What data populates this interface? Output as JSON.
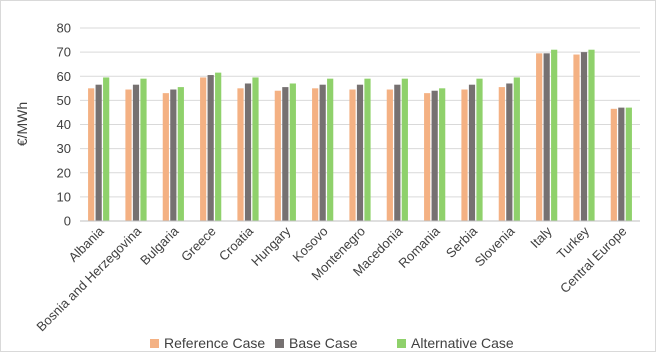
{
  "chart_data": {
    "type": "bar",
    "title": "",
    "xlabel": "",
    "ylabel": "€/MWh",
    "ylim": [
      0,
      80
    ],
    "yticks": [
      0,
      10,
      20,
      30,
      40,
      50,
      60,
      70,
      80
    ],
    "grid": true,
    "legend_position": "bottom",
    "categories": [
      "Albania",
      "Bosnia and Herzegovina",
      "Bulgaria",
      "Greece",
      "Croatia",
      "Hungary",
      "Kosovo",
      "Montenegro",
      "Macedonia",
      "Romania",
      "Serbia",
      "Slovenia",
      "Italy",
      "Turkey",
      "Central Europe"
    ],
    "series": [
      {
        "name": "Reference Case",
        "color": "#F4B183",
        "values": [
          55,
          54.5,
          53,
          59.5,
          55,
          54,
          55,
          54.5,
          54.5,
          53,
          54.5,
          55.5,
          69.5,
          69,
          46.5
        ]
      },
      {
        "name": "Base Case",
        "color": "#767171",
        "values": [
          56.5,
          56.5,
          54.5,
          60.5,
          57,
          55.5,
          56.5,
          56.5,
          56.5,
          54,
          56.5,
          57,
          69.5,
          70,
          47
        ]
      },
      {
        "name": "Alternative Case",
        "color": "#8FD16B",
        "values": [
          59.5,
          59,
          55.5,
          61.5,
          59.5,
          57,
          59,
          59,
          59,
          55,
          59,
          59.5,
          71,
          71,
          47
        ]
      }
    ]
  }
}
